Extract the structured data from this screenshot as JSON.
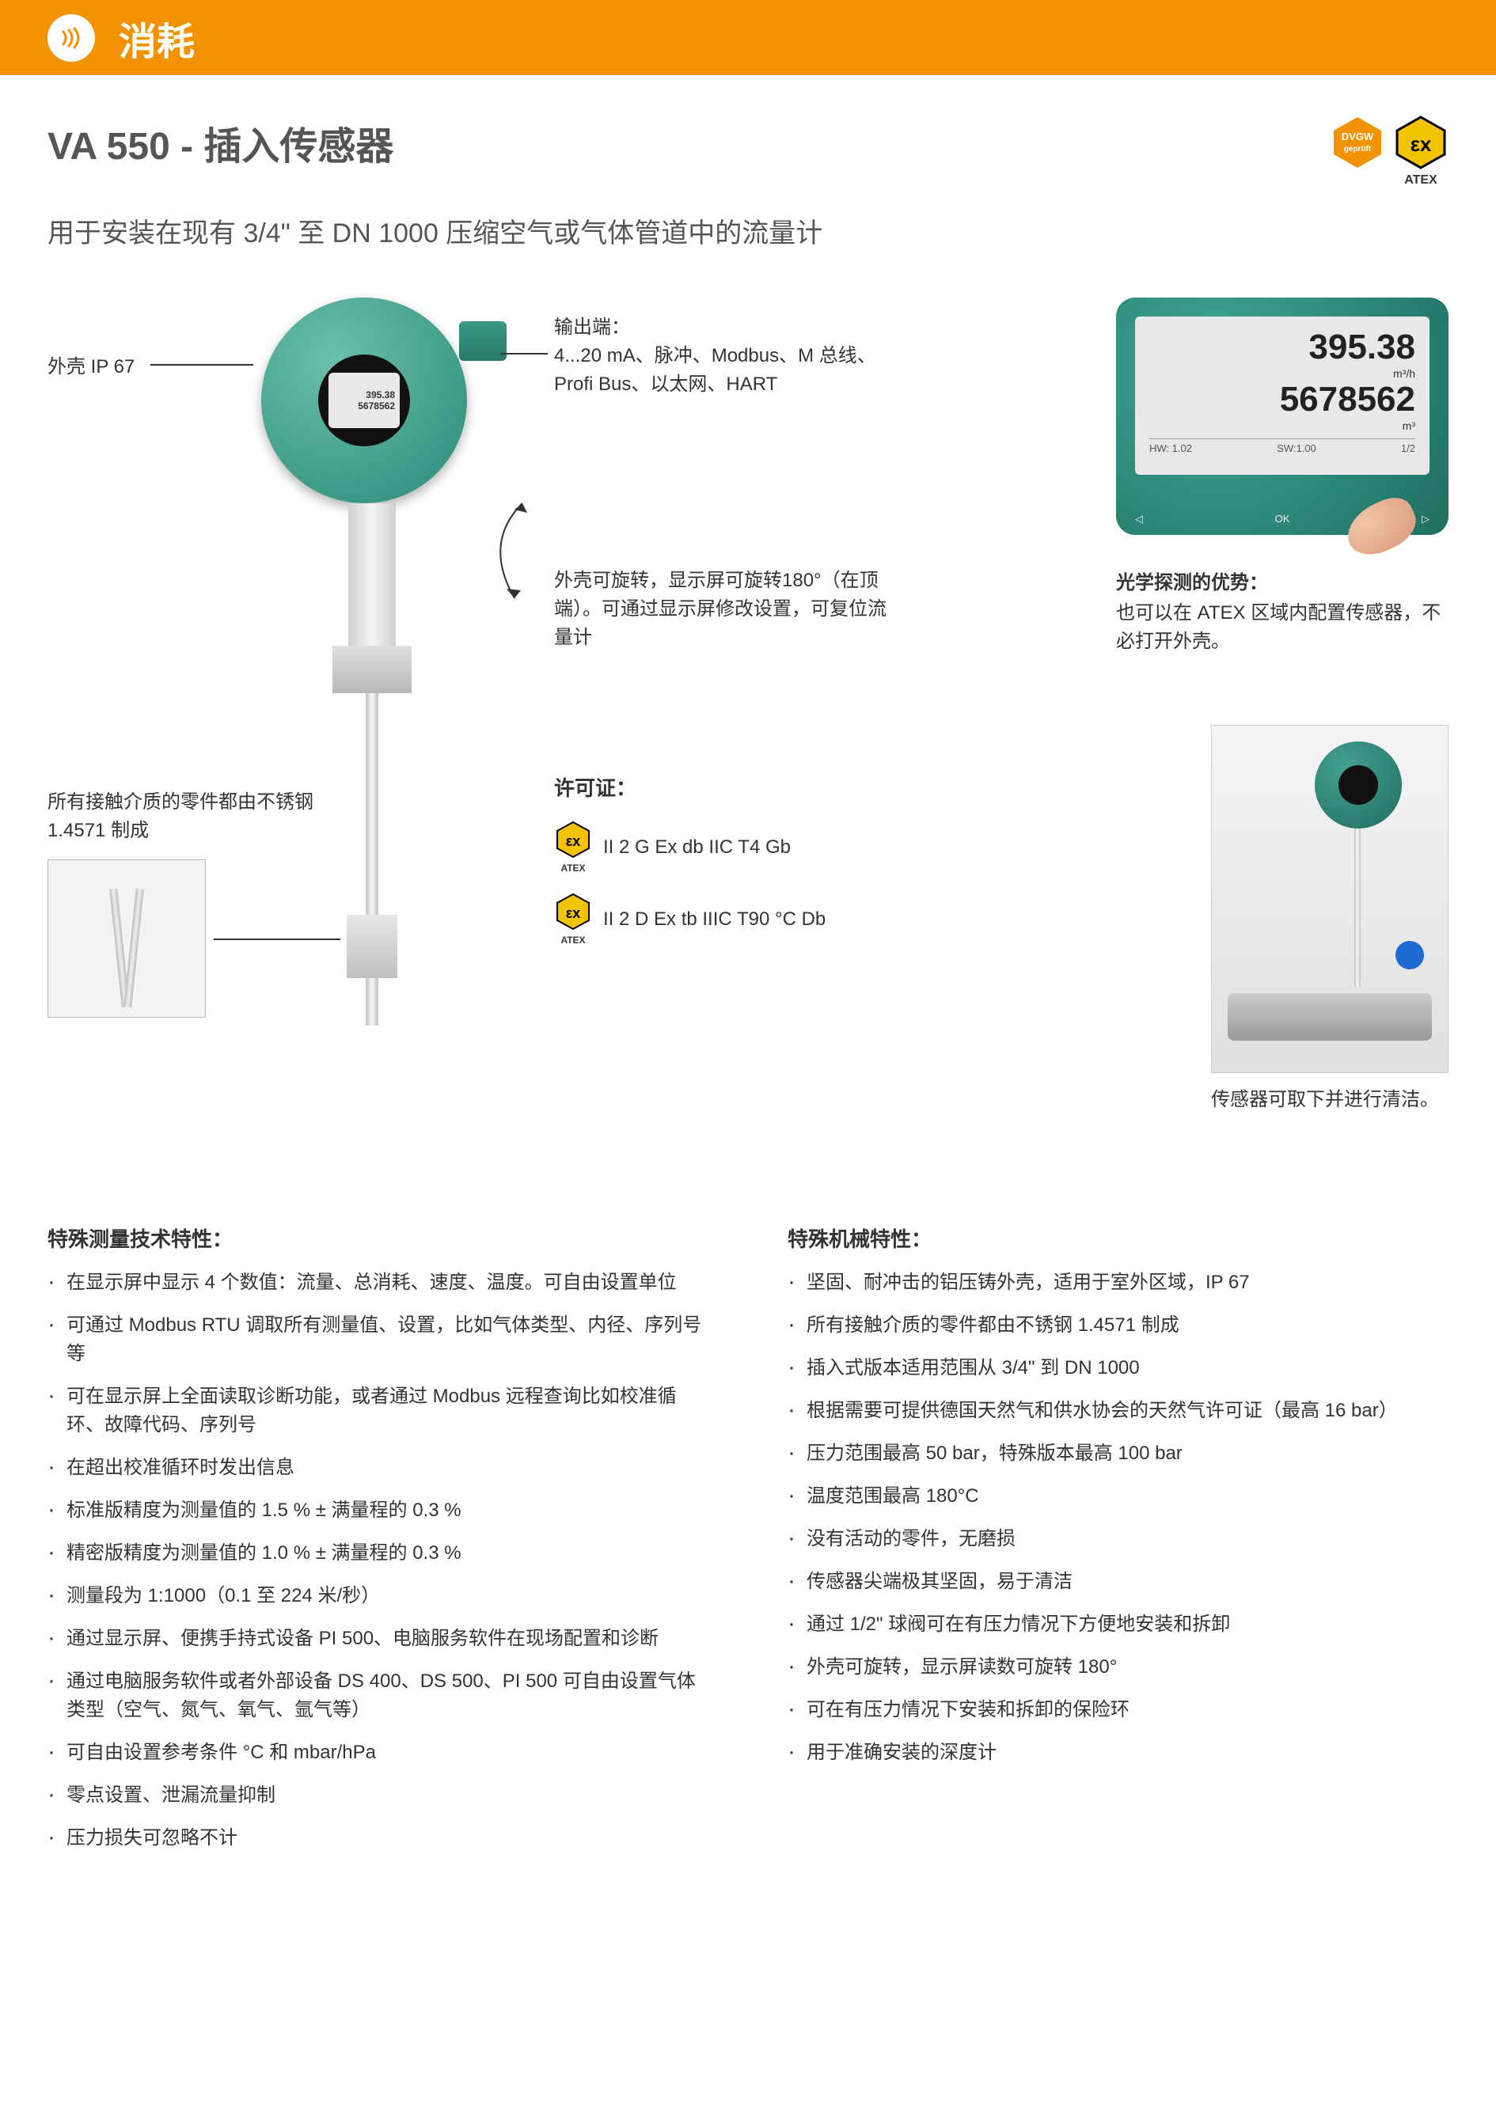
{
  "header": {
    "category": "消耗"
  },
  "title": {
    "model": "VA 550",
    "sep": " - ",
    "name": "插入传感器"
  },
  "subtitle": "用于安装在现有 3/4\" 至 DN 1000 压缩空气或气体管道中的流量计",
  "badges": {
    "dvgw": {
      "top": "DVGW",
      "bottom": "geprüft",
      "color": "#f39200"
    },
    "atex": {
      "symbol": "εx",
      "label": "ATEX",
      "color": "#f3c300",
      "border": "#000"
    }
  },
  "callouts": {
    "ip67": "外壳 IP 67",
    "outputs_label": "输出端：",
    "outputs_body": "4...20 mA、脉冲、Modbus、M 总线、Profi Bus、以太网、HART",
    "rotatable": "外壳可旋转，显示屏可旋转180°（在顶端）。可通过显示屏修改设置，可复位流量计",
    "material": "所有接触介质的零件都由不锈钢 1.4571 制成"
  },
  "display": {
    "val1": "395.38",
    "unit1": "m³/h",
    "val2": "5678562",
    "unit2": "m³",
    "hw": "HW: 1.02",
    "sw": "SW:1.00",
    "page": "1/2",
    "btn_back": "◁",
    "btn_ok": "OK",
    "btn_fwd": "▷"
  },
  "optical": {
    "heading": "光学探测的优势：",
    "body": "也可以在 ATEX 区域内配置传感器，不必打开外壳。"
  },
  "cert": {
    "title": "许可证：",
    "items": [
      {
        "text": "II 2 G Ex db IIC T4 Gb"
      },
      {
        "text": "II 2 D Ex tb IIIC T90 °C Db"
      }
    ],
    "badge_label": "ATEX"
  },
  "install": {
    "caption": "传感器可取下并进行清洁。"
  },
  "features_left": {
    "title": "特殊测量技术特性：",
    "items": [
      "在显示屏中显示 4 个数值：流量、总消耗、速度、温度。可自由设置单位",
      "可通过 Modbus RTU 调取所有测量值、设置，比如气体类型、内径、序列号等",
      "可在显示屏上全面读取诊断功能，或者通过 Modbus 远程查询比如校准循环、故障代码、序列号",
      "在超出校准循环时发出信息",
      "标准版精度为测量值的 1.5 % ±  满量程的 0.3 %",
      "精密版精度为测量值的 1.0 % ±  满量程的 0.3 %",
      "测量段为 1:1000（0.1 至 224 米/秒）",
      "通过显示屏、便携手持式设备 PI 500、电脑服务软件在现场配置和诊断",
      "通过电脑服务软件或者外部设备 DS 400、DS 500、PI 500 可自由设置气体类型（空气、氮气、氧气、氩气等）",
      "可自由设置参考条件 °C 和 mbar/hPa",
      "零点设置、泄漏流量抑制",
      "压力损失可忽略不计"
    ]
  },
  "features_right": {
    "title": "特殊机械特性：",
    "items": [
      "坚固、耐冲击的铝压铸外壳，适用于室外区域，IP 67",
      "所有接触介质的零件都由不锈钢 1.4571 制成",
      "插入式版本适用范围从 3/4\" 到 DN 1000",
      "根据需要可提供德国天然气和供水协会的天然气许可证（最高 16 bar）",
      "压力范围最高 50 bar，特殊版本最高 100 bar",
      "温度范围最高 180°C",
      "没有活动的零件，无磨损",
      "传感器尖端极其坚固，易于清洁",
      "通过 1/2\" 球阀可在有压力情况下方便地安装和拆卸",
      "外壳可旋转，显示屏读数可旋转 180°",
      "可在有压力情况下安装和拆卸的保险环",
      "用于准确安装的深度计"
    ]
  },
  "colors": {
    "brand": "#f39200",
    "teal": "#2a8a78",
    "text": "#333333"
  }
}
